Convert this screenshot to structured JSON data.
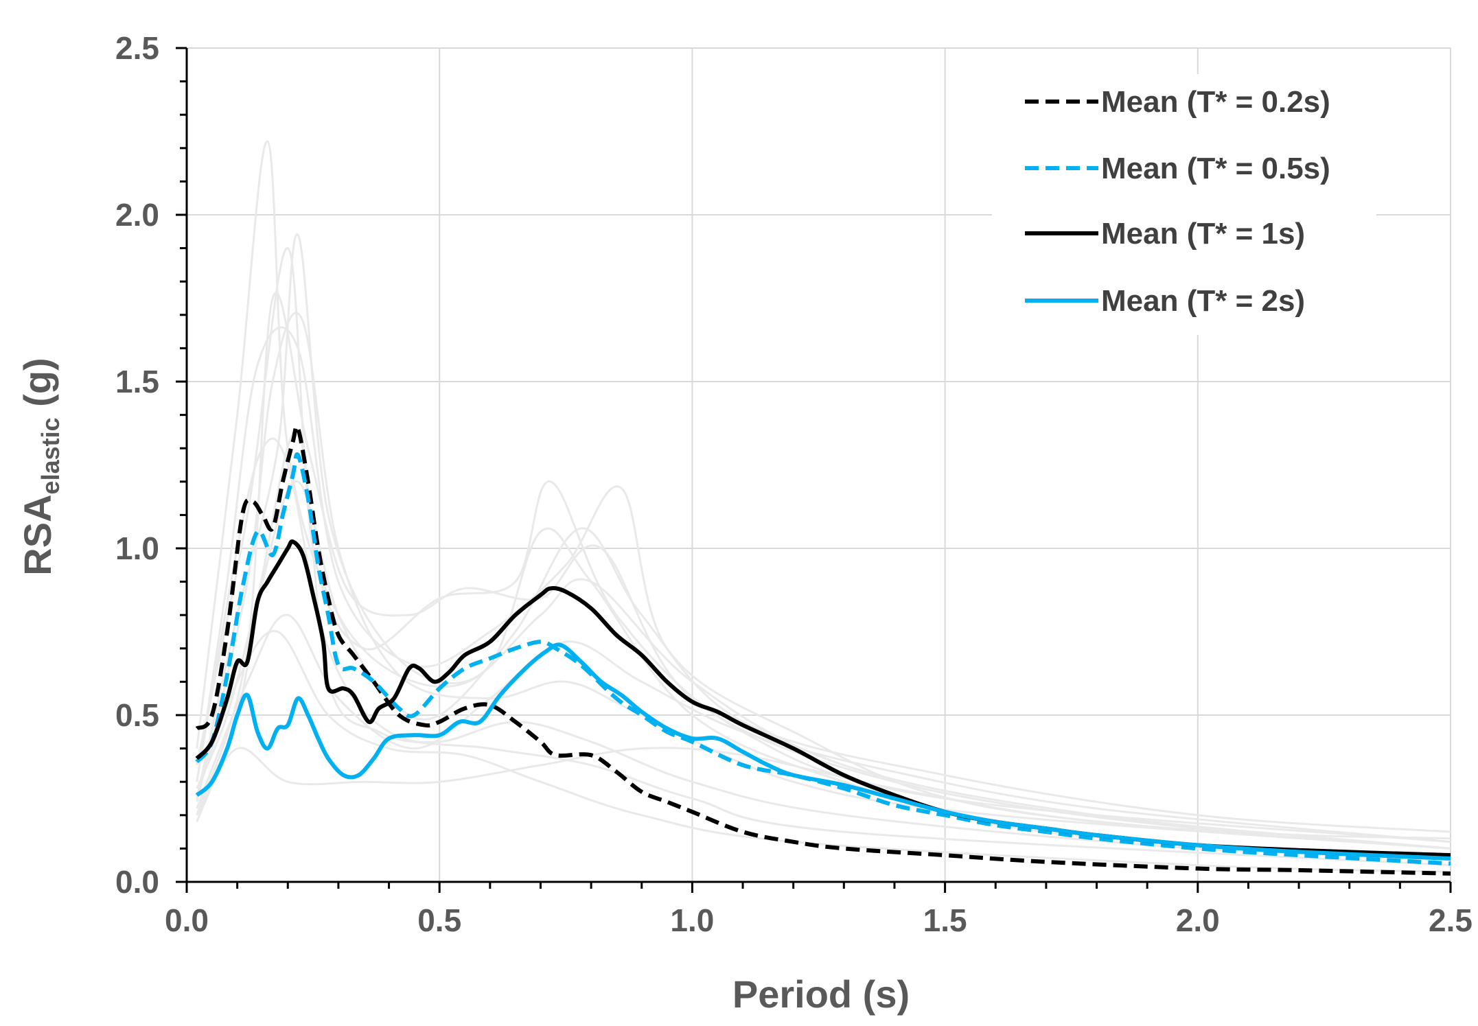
{
  "chart_data": {
    "type": "line",
    "title": "",
    "xlabel": "Period (s)",
    "ylabel_main": "RSA",
    "ylabel_sub": "elastic",
    "ylabel_unit": " (g)",
    "xlim": [
      0,
      2.5
    ],
    "ylim": [
      0,
      2.5
    ],
    "x_ticks": [
      0,
      0.5,
      1.0,
      1.5,
      2.0,
      2.5
    ],
    "y_ticks": [
      0,
      0.5,
      1.0,
      1.5,
      2.0,
      2.5
    ],
    "x_tick_labels": [
      "0.0",
      "0.5",
      "1.0",
      "1.5",
      "2.0",
      "2.5"
    ],
    "y_tick_labels": [
      "0.0",
      "0.5",
      "1.0",
      "1.5",
      "2.0",
      "2.5"
    ],
    "grid": true,
    "legend_position": "top-right",
    "colors": {
      "black": "#000000",
      "blue": "#00b0f0",
      "background_records": "#e9e9e9",
      "grid": "#d9d9d9",
      "axis": "#000000"
    },
    "series": [
      {
        "name": "Mean (T* = 0.2s)",
        "color": "#000000",
        "dash": true,
        "points": [
          [
            0.02,
            0.46
          ],
          [
            0.05,
            0.5
          ],
          [
            0.08,
            0.75
          ],
          [
            0.11,
            1.1
          ],
          [
            0.13,
            1.14
          ],
          [
            0.15,
            1.1
          ],
          [
            0.17,
            1.06
          ],
          [
            0.19,
            1.2
          ],
          [
            0.21,
            1.32
          ],
          [
            0.22,
            1.36
          ],
          [
            0.24,
            1.2
          ],
          [
            0.26,
            1.0
          ],
          [
            0.28,
            0.85
          ],
          [
            0.3,
            0.74
          ],
          [
            0.33,
            0.68
          ],
          [
            0.37,
            0.6
          ],
          [
            0.42,
            0.5
          ],
          [
            0.47,
            0.47
          ],
          [
            0.5,
            0.48
          ],
          [
            0.55,
            0.52
          ],
          [
            0.6,
            0.53
          ],
          [
            0.65,
            0.48
          ],
          [
            0.7,
            0.42
          ],
          [
            0.73,
            0.38
          ],
          [
            0.8,
            0.38
          ],
          [
            0.85,
            0.33
          ],
          [
            0.9,
            0.27
          ],
          [
            0.95,
            0.24
          ],
          [
            1.0,
            0.21
          ],
          [
            1.1,
            0.15
          ],
          [
            1.2,
            0.12
          ],
          [
            1.3,
            0.1
          ],
          [
            1.5,
            0.08
          ],
          [
            1.7,
            0.06
          ],
          [
            2.0,
            0.04
          ],
          [
            2.2,
            0.035
          ],
          [
            2.5,
            0.025
          ]
        ]
      },
      {
        "name": "Mean (T* = 0.5s)",
        "color": "#00b0f0",
        "dash": true,
        "points": [
          [
            0.02,
            0.36
          ],
          [
            0.05,
            0.42
          ],
          [
            0.08,
            0.62
          ],
          [
            0.11,
            0.88
          ],
          [
            0.14,
            1.05
          ],
          [
            0.17,
            0.98
          ],
          [
            0.19,
            1.1
          ],
          [
            0.21,
            1.22
          ],
          [
            0.22,
            1.28
          ],
          [
            0.24,
            1.15
          ],
          [
            0.26,
            0.95
          ],
          [
            0.28,
            0.8
          ],
          [
            0.3,
            0.65
          ],
          [
            0.33,
            0.64
          ],
          [
            0.37,
            0.6
          ],
          [
            0.42,
            0.52
          ],
          [
            0.45,
            0.5
          ],
          [
            0.5,
            0.58
          ],
          [
            0.55,
            0.64
          ],
          [
            0.6,
            0.67
          ],
          [
            0.65,
            0.7
          ],
          [
            0.7,
            0.72
          ],
          [
            0.73,
            0.7
          ],
          [
            0.78,
            0.65
          ],
          [
            0.85,
            0.55
          ],
          [
            0.9,
            0.5
          ],
          [
            0.95,
            0.45
          ],
          [
            1.0,
            0.42
          ],
          [
            1.1,
            0.35
          ],
          [
            1.2,
            0.32
          ],
          [
            1.3,
            0.28
          ],
          [
            1.4,
            0.23
          ],
          [
            1.5,
            0.2
          ],
          [
            1.6,
            0.17
          ],
          [
            1.7,
            0.15
          ],
          [
            1.8,
            0.13
          ],
          [
            2.0,
            0.1
          ],
          [
            2.2,
            0.08
          ],
          [
            2.5,
            0.055
          ]
        ]
      },
      {
        "name": "Mean (T* = 1s)",
        "color": "#000000",
        "dash": false,
        "points": [
          [
            0.02,
            0.37
          ],
          [
            0.05,
            0.42
          ],
          [
            0.08,
            0.55
          ],
          [
            0.1,
            0.66
          ],
          [
            0.12,
            0.66
          ],
          [
            0.14,
            0.84
          ],
          [
            0.16,
            0.9
          ],
          [
            0.18,
            0.95
          ],
          [
            0.2,
            1.0
          ],
          [
            0.21,
            1.02
          ],
          [
            0.23,
            0.98
          ],
          [
            0.25,
            0.86
          ],
          [
            0.27,
            0.72
          ],
          [
            0.28,
            0.58
          ],
          [
            0.31,
            0.58
          ],
          [
            0.33,
            0.56
          ],
          [
            0.36,
            0.48
          ],
          [
            0.38,
            0.52
          ],
          [
            0.41,
            0.55
          ],
          [
            0.44,
            0.64
          ],
          [
            0.46,
            0.64
          ],
          [
            0.49,
            0.6
          ],
          [
            0.52,
            0.63
          ],
          [
            0.55,
            0.68
          ],
          [
            0.6,
            0.72
          ],
          [
            0.65,
            0.8
          ],
          [
            0.7,
            0.86
          ],
          [
            0.72,
            0.88
          ],
          [
            0.75,
            0.87
          ],
          [
            0.8,
            0.82
          ],
          [
            0.85,
            0.74
          ],
          [
            0.9,
            0.68
          ],
          [
            0.95,
            0.6
          ],
          [
            1.0,
            0.54
          ],
          [
            1.05,
            0.51
          ],
          [
            1.1,
            0.47
          ],
          [
            1.2,
            0.4
          ],
          [
            1.3,
            0.32
          ],
          [
            1.4,
            0.26
          ],
          [
            1.5,
            0.21
          ],
          [
            1.6,
            0.18
          ],
          [
            1.7,
            0.16
          ],
          [
            1.8,
            0.14
          ],
          [
            2.0,
            0.11
          ],
          [
            2.2,
            0.095
          ],
          [
            2.5,
            0.08
          ]
        ]
      },
      {
        "name": "Mean (T* = 2s)",
        "color": "#00b0f0",
        "dash": false,
        "points": [
          [
            0.02,
            0.26
          ],
          [
            0.05,
            0.3
          ],
          [
            0.08,
            0.4
          ],
          [
            0.1,
            0.5
          ],
          [
            0.12,
            0.56
          ],
          [
            0.14,
            0.45
          ],
          [
            0.16,
            0.4
          ],
          [
            0.18,
            0.46
          ],
          [
            0.2,
            0.47
          ],
          [
            0.22,
            0.55
          ],
          [
            0.24,
            0.5
          ],
          [
            0.26,
            0.43
          ],
          [
            0.28,
            0.37
          ],
          [
            0.31,
            0.32
          ],
          [
            0.34,
            0.32
          ],
          [
            0.37,
            0.37
          ],
          [
            0.4,
            0.43
          ],
          [
            0.45,
            0.44
          ],
          [
            0.5,
            0.44
          ],
          [
            0.54,
            0.48
          ],
          [
            0.58,
            0.48
          ],
          [
            0.62,
            0.56
          ],
          [
            0.67,
            0.64
          ],
          [
            0.71,
            0.69
          ],
          [
            0.74,
            0.71
          ],
          [
            0.78,
            0.66
          ],
          [
            0.82,
            0.6
          ],
          [
            0.86,
            0.56
          ],
          [
            0.9,
            0.51
          ],
          [
            0.95,
            0.46
          ],
          [
            1.0,
            0.43
          ],
          [
            1.05,
            0.43
          ],
          [
            1.1,
            0.39
          ],
          [
            1.15,
            0.35
          ],
          [
            1.2,
            0.32
          ],
          [
            1.3,
            0.29
          ],
          [
            1.4,
            0.25
          ],
          [
            1.5,
            0.21
          ],
          [
            1.6,
            0.18
          ],
          [
            1.7,
            0.16
          ],
          [
            1.8,
            0.14
          ],
          [
            2.0,
            0.11
          ],
          [
            2.2,
            0.09
          ],
          [
            2.5,
            0.07
          ]
        ]
      }
    ],
    "background_records": [
      [
        [
          0.02,
          0.4
        ],
        [
          0.1,
          1.4
        ],
        [
          0.16,
          2.22
        ],
        [
          0.2,
          1.3
        ],
        [
          0.3,
          0.8
        ],
        [
          0.45,
          0.6
        ],
        [
          0.6,
          0.65
        ],
        [
          0.7,
          1.05
        ],
        [
          0.8,
          0.9
        ],
        [
          1.0,
          0.5
        ],
        [
          1.3,
          0.3
        ],
        [
          1.7,
          0.15
        ],
        [
          2.5,
          0.07
        ]
      ],
      [
        [
          0.02,
          0.35
        ],
        [
          0.12,
          1.1
        ],
        [
          0.2,
          1.9
        ],
        [
          0.25,
          1.0
        ],
        [
          0.35,
          0.7
        ],
        [
          0.5,
          0.85
        ],
        [
          0.65,
          0.9
        ],
        [
          0.72,
          1.2
        ],
        [
          0.85,
          0.8
        ],
        [
          1.1,
          0.45
        ],
        [
          1.5,
          0.25
        ],
        [
          2.5,
          0.12
        ]
      ],
      [
        [
          0.02,
          0.3
        ],
        [
          0.08,
          0.9
        ],
        [
          0.14,
          1.55
        ],
        [
          0.22,
          1.6
        ],
        [
          0.3,
          0.9
        ],
        [
          0.45,
          0.65
        ],
        [
          0.6,
          0.75
        ],
        [
          0.75,
          0.95
        ],
        [
          0.86,
          1.18
        ],
        [
          0.95,
          0.7
        ],
        [
          1.2,
          0.45
        ],
        [
          1.6,
          0.22
        ],
        [
          2.5,
          0.1
        ]
      ],
      [
        [
          0.02,
          0.25
        ],
        [
          0.1,
          0.8
        ],
        [
          0.18,
          1.3
        ],
        [
          0.22,
          1.94
        ],
        [
          0.28,
          1.1
        ],
        [
          0.4,
          0.7
        ],
        [
          0.55,
          0.6
        ],
        [
          0.7,
          0.8
        ],
        [
          0.8,
          0.9
        ],
        [
          1.0,
          0.6
        ],
        [
          1.3,
          0.35
        ],
        [
          1.8,
          0.2
        ],
        [
          2.5,
          0.1
        ]
      ],
      [
        [
          0.02,
          0.2
        ],
        [
          0.12,
          0.7
        ],
        [
          0.17,
          1.75
        ],
        [
          0.24,
          1.3
        ],
        [
          0.32,
          0.87
        ],
        [
          0.44,
          0.8
        ],
        [
          0.55,
          0.88
        ],
        [
          0.7,
          0.85
        ],
        [
          0.82,
          1.0
        ],
        [
          1.0,
          0.55
        ],
        [
          1.4,
          0.3
        ],
        [
          2.0,
          0.16
        ],
        [
          2.5,
          0.13
        ]
      ],
      [
        [
          0.02,
          0.18
        ],
        [
          0.1,
          0.5
        ],
        [
          0.15,
          0.9
        ],
        [
          0.22,
          1.2
        ],
        [
          0.3,
          0.8
        ],
        [
          0.4,
          0.55
        ],
        [
          0.5,
          0.5
        ],
        [
          0.65,
          0.75
        ],
        [
          0.78,
          1.06
        ],
        [
          0.9,
          0.8
        ],
        [
          1.1,
          0.48
        ],
        [
          1.5,
          0.32
        ],
        [
          2.0,
          0.2
        ],
        [
          2.5,
          0.15
        ]
      ],
      [
        [
          0.02,
          0.3
        ],
        [
          0.1,
          1.0
        ],
        [
          0.15,
          1.3
        ],
        [
          0.2,
          1.25
        ],
        [
          0.28,
          0.7
        ],
        [
          0.4,
          0.45
        ],
        [
          0.6,
          0.4
        ],
        [
          0.8,
          0.35
        ],
        [
          1.0,
          0.25
        ],
        [
          1.3,
          0.15
        ],
        [
          2.5,
          0.05
        ]
      ],
      [
        [
          0.02,
          0.22
        ],
        [
          0.12,
          0.6
        ],
        [
          0.2,
          0.8
        ],
        [
          0.3,
          0.55
        ],
        [
          0.45,
          0.4
        ],
        [
          0.6,
          0.55
        ],
        [
          0.75,
          0.72
        ],
        [
          0.9,
          0.6
        ],
        [
          1.1,
          0.45
        ],
        [
          1.4,
          0.33
        ],
        [
          1.8,
          0.22
        ],
        [
          2.5,
          0.12
        ]
      ],
      [
        [
          0.02,
          0.28
        ],
        [
          0.08,
          0.5
        ],
        [
          0.14,
          0.85
        ],
        [
          0.22,
          1.35
        ],
        [
          0.28,
          0.6
        ],
        [
          0.38,
          0.45
        ],
        [
          0.5,
          0.42
        ],
        [
          0.65,
          0.48
        ],
        [
          0.8,
          0.42
        ],
        [
          1.0,
          0.3
        ],
        [
          1.3,
          0.2
        ],
        [
          2.0,
          0.1
        ],
        [
          2.5,
          0.08
        ]
      ],
      [
        [
          0.02,
          0.2
        ],
        [
          0.1,
          0.4
        ],
        [
          0.2,
          0.3
        ],
        [
          0.35,
          0.3
        ],
        [
          0.5,
          0.3
        ],
        [
          0.7,
          0.35
        ],
        [
          0.9,
          0.4
        ],
        [
          1.1,
          0.38
        ],
        [
          1.4,
          0.28
        ],
        [
          1.8,
          0.18
        ],
        [
          2.5,
          0.1
        ]
      ],
      [
        [
          0.02,
          0.24
        ],
        [
          0.12,
          0.9
        ],
        [
          0.17,
          1.5
        ],
        [
          0.23,
          1.68
        ],
        [
          0.3,
          1.0
        ],
        [
          0.42,
          0.62
        ],
        [
          0.6,
          0.55
        ],
        [
          0.75,
          0.6
        ],
        [
          0.9,
          0.5
        ],
        [
          1.2,
          0.3
        ],
        [
          1.6,
          0.2
        ],
        [
          2.5,
          0.1
        ]
      ],
      [
        [
          0.02,
          0.26
        ],
        [
          0.1,
          0.6
        ],
        [
          0.18,
          0.75
        ],
        [
          0.28,
          0.5
        ],
        [
          0.4,
          0.4
        ],
        [
          0.55,
          0.38
        ],
        [
          0.7,
          0.3
        ],
        [
          0.9,
          0.2
        ],
        [
          1.2,
          0.12
        ],
        [
          2.0,
          0.05
        ],
        [
          2.5,
          0.03
        ]
      ]
    ]
  }
}
